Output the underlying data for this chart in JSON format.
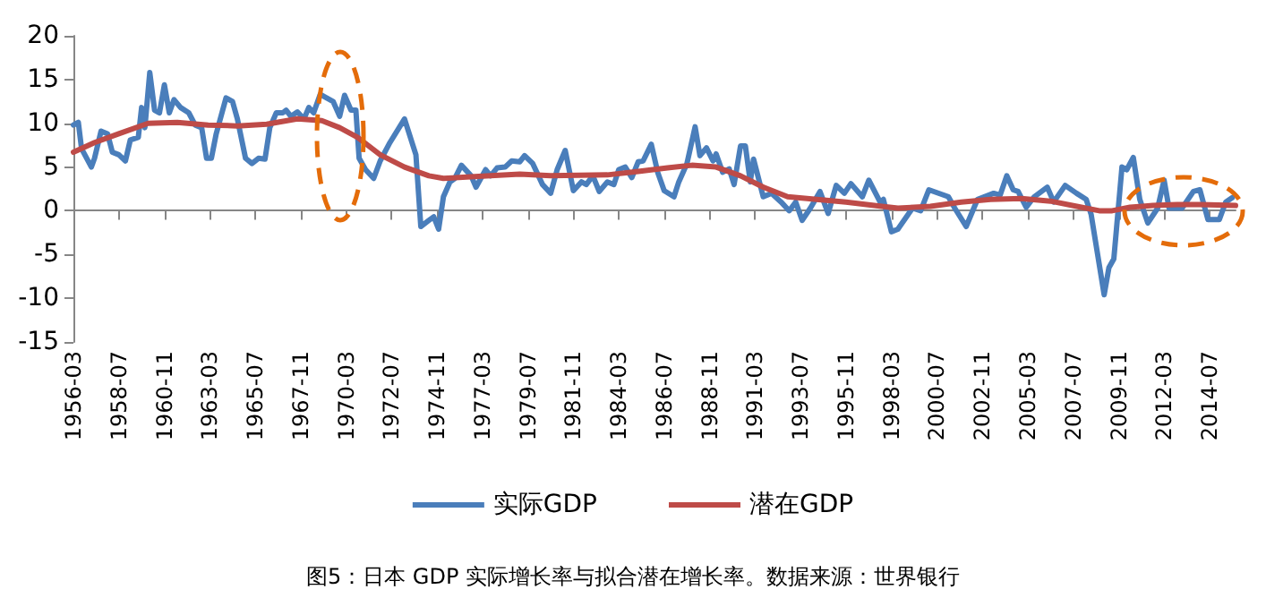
{
  "chart_data": {
    "type": "line",
    "annotations": [
      "图5：日本 GDP 实际增长率与拟合潜在增长率。数据来源：世界银行"
    ],
    "xlim": [
      "1956-03",
      "2015-11"
    ],
    "xticks": [
      "1956-03",
      "1958-07",
      "1960-11",
      "1963-03",
      "1965-07",
      "1967-11",
      "1970-03",
      "1972-07",
      "1974-11",
      "1977-03",
      "1979-07",
      "1981-11",
      "1984-03",
      "1986-07",
      "1988-11",
      "1991-03",
      "1993-07",
      "1995-11",
      "1998-03",
      "2000-07",
      "2002-11",
      "2005-03",
      "2007-07",
      "2009-11",
      "2012-03",
      "2014-07"
    ],
    "ylim": [
      -15,
      20
    ],
    "yticks": [
      -15,
      -10,
      -5,
      0,
      5,
      10,
      15,
      20
    ],
    "legend": "bottom",
    "marker": "none",
    "line_style": "solid",
    "series": [
      {
        "name": "实际GDP",
        "color": "#4a7ebb",
        "x": [
          "1956-03",
          "1956-06",
          "1956-08",
          "1957-02",
          "1957-04",
          "1957-08",
          "1957-12",
          "1958-03",
          "1958-07",
          "1958-11",
          "1959-02",
          "1959-07",
          "1959-09",
          "1959-11",
          "1960-02",
          "1960-05",
          "1960-08",
          "1960-11",
          "1961-02",
          "1961-05",
          "1961-09",
          "1962-02",
          "1962-06",
          "1962-10",
          "1963-01",
          "1963-04",
          "1963-07",
          "1964-01",
          "1964-05",
          "1964-08",
          "1965-01",
          "1965-05",
          "1965-09",
          "1966-01",
          "1966-04",
          "1966-08",
          "1966-12",
          "1967-02",
          "1967-05",
          "1967-09",
          "1968-01",
          "1968-04",
          "1968-07",
          "1968-11",
          "1969-03",
          "1969-07",
          "1969-11",
          "1970-02",
          "1970-06",
          "1970-09",
          "1970-11",
          "1971-03",
          "1971-08",
          "1971-12",
          "1972-06",
          "1973-03",
          "1973-10",
          "1974-01",
          "1974-06",
          "1974-09",
          "1974-12",
          "1975-03",
          "1975-07",
          "1975-10",
          "1976-02",
          "1976-08",
          "1976-11",
          "1977-05",
          "1977-08",
          "1977-12",
          "1978-05",
          "1978-09",
          "1979-02",
          "1979-05",
          "1979-10",
          "1980-04",
          "1980-09",
          "1981-01",
          "1981-06",
          "1981-11",
          "1982-04",
          "1982-07",
          "1982-11",
          "1983-03",
          "1983-08",
          "1983-12",
          "1984-03",
          "1984-07",
          "1984-11",
          "1985-03",
          "1985-06",
          "1985-11",
          "1986-03",
          "1986-07",
          "1987-01",
          "1987-04",
          "1987-09",
          "1988-02",
          "1988-05",
          "1988-09",
          "1989-01",
          "1989-03",
          "1989-07",
          "1989-11",
          "1990-02",
          "1990-06",
          "1990-09",
          "1990-12",
          "1991-02",
          "1991-08",
          "1992-01",
          "1992-07",
          "1992-12",
          "1993-04",
          "1993-08",
          "1994-01",
          "1994-07",
          "1994-12",
          "1995-05",
          "1995-10",
          "1996-02",
          "1996-09",
          "1997-01",
          "1997-08",
          "1997-10",
          "1998-03",
          "1998-07",
          "1999-04",
          "1999-09",
          "2000-02",
          "2001-02",
          "2001-06",
          "2002-01",
          "2002-08",
          "2003-06",
          "2003-10",
          "2004-02",
          "2004-06",
          "2004-09",
          "2005-02",
          "2005-07",
          "2006-03",
          "2006-07",
          "2007-02",
          "2007-09",
          "2008-03",
          "2008-06",
          "2009-02",
          "2009-05",
          "2009-08",
          "2010-01",
          "2010-04",
          "2010-08",
          "2010-12",
          "2011-05",
          "2011-11",
          "2012-03",
          "2012-06",
          "2013-02",
          "2013-09",
          "2014-01",
          "2014-06",
          "2015-01",
          "2015-05",
          "2015-09"
        ],
        "values": [
          9.8,
          10.1,
          7.1,
          5,
          6,
          9.1,
          8.8,
          6.7,
          6.4,
          5.7,
          8.1,
          8.4,
          11.8,
          9.5,
          15.8,
          11.5,
          11.2,
          14.4,
          11.2,
          12.7,
          11.8,
          11.2,
          9.8,
          9.5,
          6,
          6,
          8.8,
          12.9,
          12.5,
          10.5,
          6,
          5.4,
          6,
          5.9,
          9.5,
          11.2,
          11.2,
          11.5,
          10.8,
          11.3,
          10.5,
          11.8,
          11.2,
          13.3,
          12.9,
          12.5,
          10.8,
          13.2,
          11.5,
          11.5,
          6,
          4.7,
          3.7,
          5.7,
          7.8,
          10.5,
          6.4,
          -1.8,
          -1.1,
          -0.7,
          -2.1,
          1.6,
          3.3,
          3.7,
          5.2,
          4,
          2.7,
          4.7,
          4,
          4.9,
          5,
          5.7,
          5.6,
          6.3,
          5.4,
          3,
          2,
          4.7,
          6.9,
          2.3,
          3.3,
          3,
          4,
          2.2,
          3.3,
          3,
          4.7,
          5,
          3.8,
          5.6,
          5.7,
          7.6,
          4.4,
          2.3,
          1.6,
          3.3,
          5.4,
          9.6,
          6.3,
          7.2,
          5.7,
          6.5,
          4.4,
          4.8,
          3,
          7.4,
          7.4,
          3.3,
          5.9,
          1.6,
          2,
          1,
          0,
          1,
          -1.1,
          0.3,
          2.2,
          -0.3,
          2.9,
          2,
          3.1,
          1.6,
          3.5,
          1,
          1.3,
          -2.4,
          -2.1,
          0.3,
          0,
          2.4,
          1.6,
          0.3,
          -1.8,
          1.3,
          2,
          1.8,
          4,
          2.4,
          2.2,
          0.4,
          1.6,
          2.7,
          1,
          2.9,
          2,
          1.3,
          -0.4,
          -9.6,
          -6.5,
          -5.5,
          5,
          4.7,
          6.1,
          1.3,
          -1.4,
          0.3,
          3.5,
          0.3,
          0.3,
          2.2,
          2.4,
          -1,
          -1,
          1,
          1.5
        ]
      },
      {
        "name": "潜在GDP",
        "color": "#be4b48",
        "x": [
          "1956-03",
          "1957-04",
          "1958-07",
          "1960-01",
          "1961-07",
          "1963-02",
          "1964-08",
          "1966-02",
          "1967-09",
          "1968-12",
          "1969-11",
          "1970-10",
          "1971-12",
          "1973-03",
          "1974-06",
          "1975-03",
          "1977-08",
          "1979-02",
          "1980-09",
          "1983-08",
          "1985-03",
          "1986-09",
          "1987-12",
          "1989-03",
          "1990-06",
          "1991-08",
          "1992-11",
          "1994-05",
          "1995-11",
          "1997-09",
          "1998-07",
          "2000-03",
          "2001-10",
          "2003-04",
          "2004-11",
          "2006-05",
          "2007-12",
          "2008-11",
          "2009-07",
          "2010-06",
          "2011-08",
          "2012-11",
          "2014-01",
          "2015-11"
        ],
        "values": [
          6.7,
          7.8,
          8.8,
          10,
          10.1,
          9.8,
          9.7,
          9.9,
          10.5,
          10.3,
          9.5,
          8.4,
          6.4,
          5,
          4,
          3.7,
          4,
          4.2,
          4,
          4.1,
          4.5,
          4.9,
          5.2,
          5,
          4,
          2.7,
          1.6,
          1.3,
          1,
          0.5,
          0.3,
          0.5,
          1,
          1.3,
          1.4,
          1.1,
          0.4,
          0,
          0,
          0.4,
          0.6,
          0.7,
          0.7,
          0.6
        ]
      }
    ]
  }
}
